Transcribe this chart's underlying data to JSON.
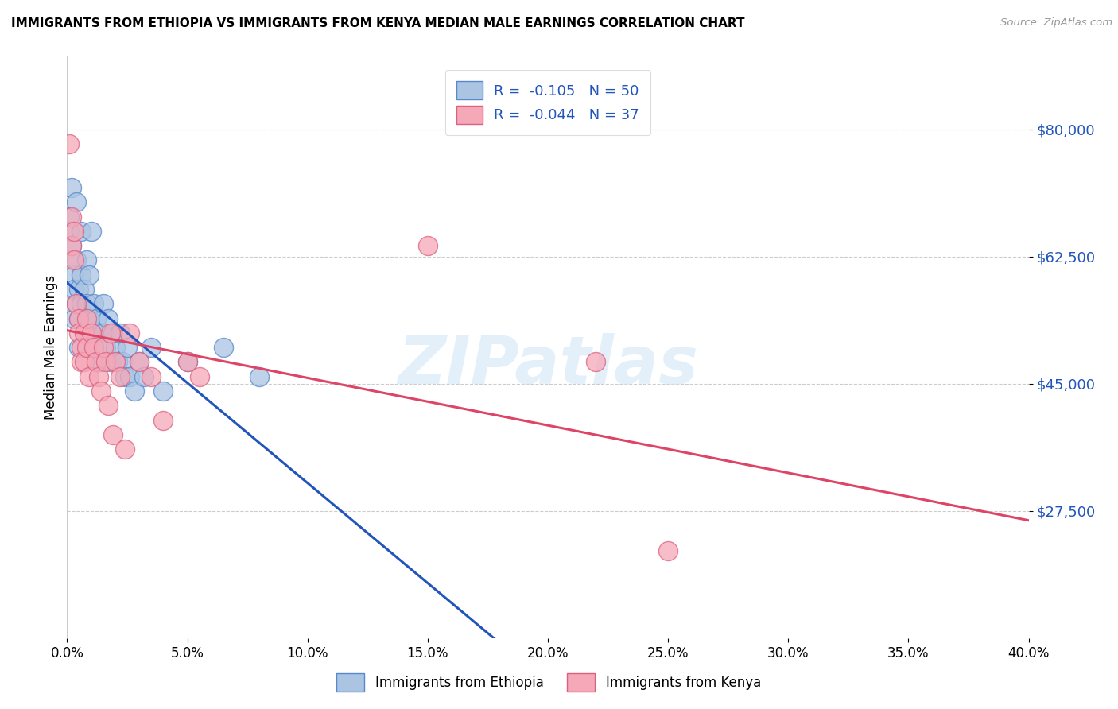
{
  "title": "IMMIGRANTS FROM ETHIOPIA VS IMMIGRANTS FROM KENYA MEDIAN MALE EARNINGS CORRELATION CHART",
  "source": "Source: ZipAtlas.com",
  "ylabel": "Median Male Earnings",
  "ytick_vals": [
    27500,
    45000,
    62500,
    80000
  ],
  "ytick_labels": [
    "$27,500",
    "$45,000",
    "$62,500",
    "$80,000"
  ],
  "xmin": 0.0,
  "xmax": 0.4,
  "ymin": 10000,
  "ymax": 90000,
  "watermark": "ZIPatlas",
  "ethiopia_color": "#aac4e2",
  "kenya_color": "#f5a8b8",
  "ethiopia_edge": "#5588cc",
  "kenya_edge": "#dd6080",
  "blue_line_color": "#2255bb",
  "pink_line_color": "#dd4466",
  "legend_blue_label": "R =  -0.105   N = 50",
  "legend_pink_label": "R =  -0.044   N = 37",
  "ethiopia_label": "Immigrants from Ethiopia",
  "kenya_label": "Immigrants from Kenya",
  "ethiopia_x": [
    0.001,
    0.001,
    0.002,
    0.002,
    0.003,
    0.003,
    0.003,
    0.004,
    0.004,
    0.004,
    0.005,
    0.005,
    0.005,
    0.006,
    0.006,
    0.006,
    0.007,
    0.007,
    0.008,
    0.008,
    0.009,
    0.009,
    0.01,
    0.01,
    0.011,
    0.011,
    0.012,
    0.013,
    0.014,
    0.015,
    0.015,
    0.016,
    0.017,
    0.018,
    0.019,
    0.02,
    0.021,
    0.022,
    0.023,
    0.024,
    0.025,
    0.026,
    0.028,
    0.03,
    0.032,
    0.035,
    0.04,
    0.05,
    0.065,
    0.08
  ],
  "ethiopia_y": [
    68000,
    66000,
    72000,
    64000,
    60000,
    58000,
    54000,
    70000,
    62000,
    56000,
    58000,
    54000,
    50000,
    66000,
    60000,
    56000,
    58000,
    52000,
    62000,
    56000,
    60000,
    54000,
    66000,
    52000,
    56000,
    50000,
    54000,
    52000,
    48000,
    56000,
    52000,
    50000,
    54000,
    48000,
    52000,
    50000,
    48000,
    52000,
    48000,
    46000,
    50000,
    46000,
    44000,
    48000,
    46000,
    50000,
    44000,
    48000,
    50000,
    46000
  ],
  "kenya_x": [
    0.001,
    0.002,
    0.002,
    0.003,
    0.003,
    0.004,
    0.005,
    0.005,
    0.006,
    0.006,
    0.007,
    0.007,
    0.008,
    0.008,
    0.009,
    0.01,
    0.011,
    0.012,
    0.013,
    0.014,
    0.015,
    0.016,
    0.017,
    0.018,
    0.019,
    0.02,
    0.022,
    0.024,
    0.026,
    0.03,
    0.035,
    0.04,
    0.05,
    0.055,
    0.15,
    0.22,
    0.25
  ],
  "kenya_y": [
    78000,
    68000,
    64000,
    66000,
    62000,
    56000,
    54000,
    52000,
    50000,
    48000,
    52000,
    48000,
    54000,
    50000,
    46000,
    52000,
    50000,
    48000,
    46000,
    44000,
    50000,
    48000,
    42000,
    52000,
    38000,
    48000,
    46000,
    36000,
    52000,
    48000,
    46000,
    40000,
    48000,
    46000,
    64000,
    48000,
    22000
  ]
}
